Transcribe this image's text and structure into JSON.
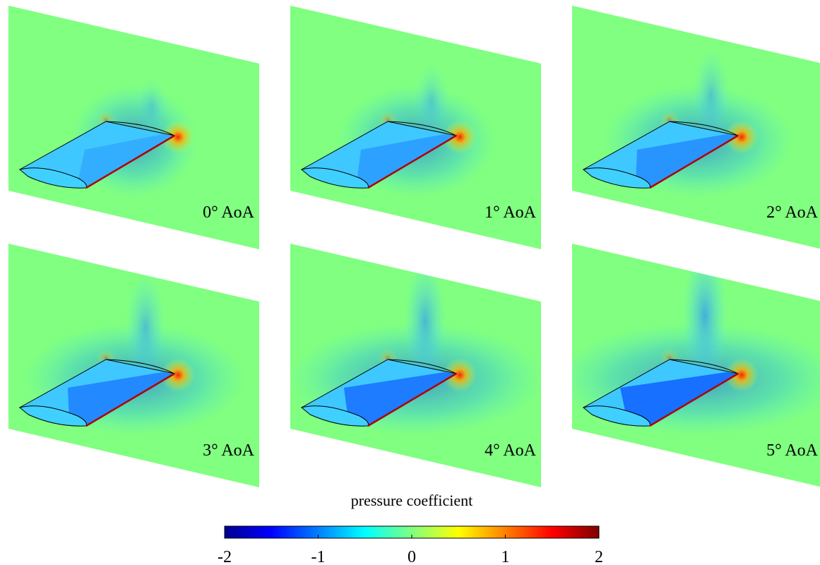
{
  "panels": [
    {
      "label": "0° AoA"
    },
    {
      "label": "1° AoA"
    },
    {
      "label": "2° AoA"
    },
    {
      "label": "3° AoA"
    },
    {
      "label": "4° AoA"
    },
    {
      "label": "5° AoA"
    }
  ],
  "colorbar": {
    "title": "pressure coefficient",
    "lim": [
      -2,
      2
    ],
    "ticks": [
      -2,
      -1,
      0,
      1,
      2
    ],
    "colormap": "jet"
  }
}
